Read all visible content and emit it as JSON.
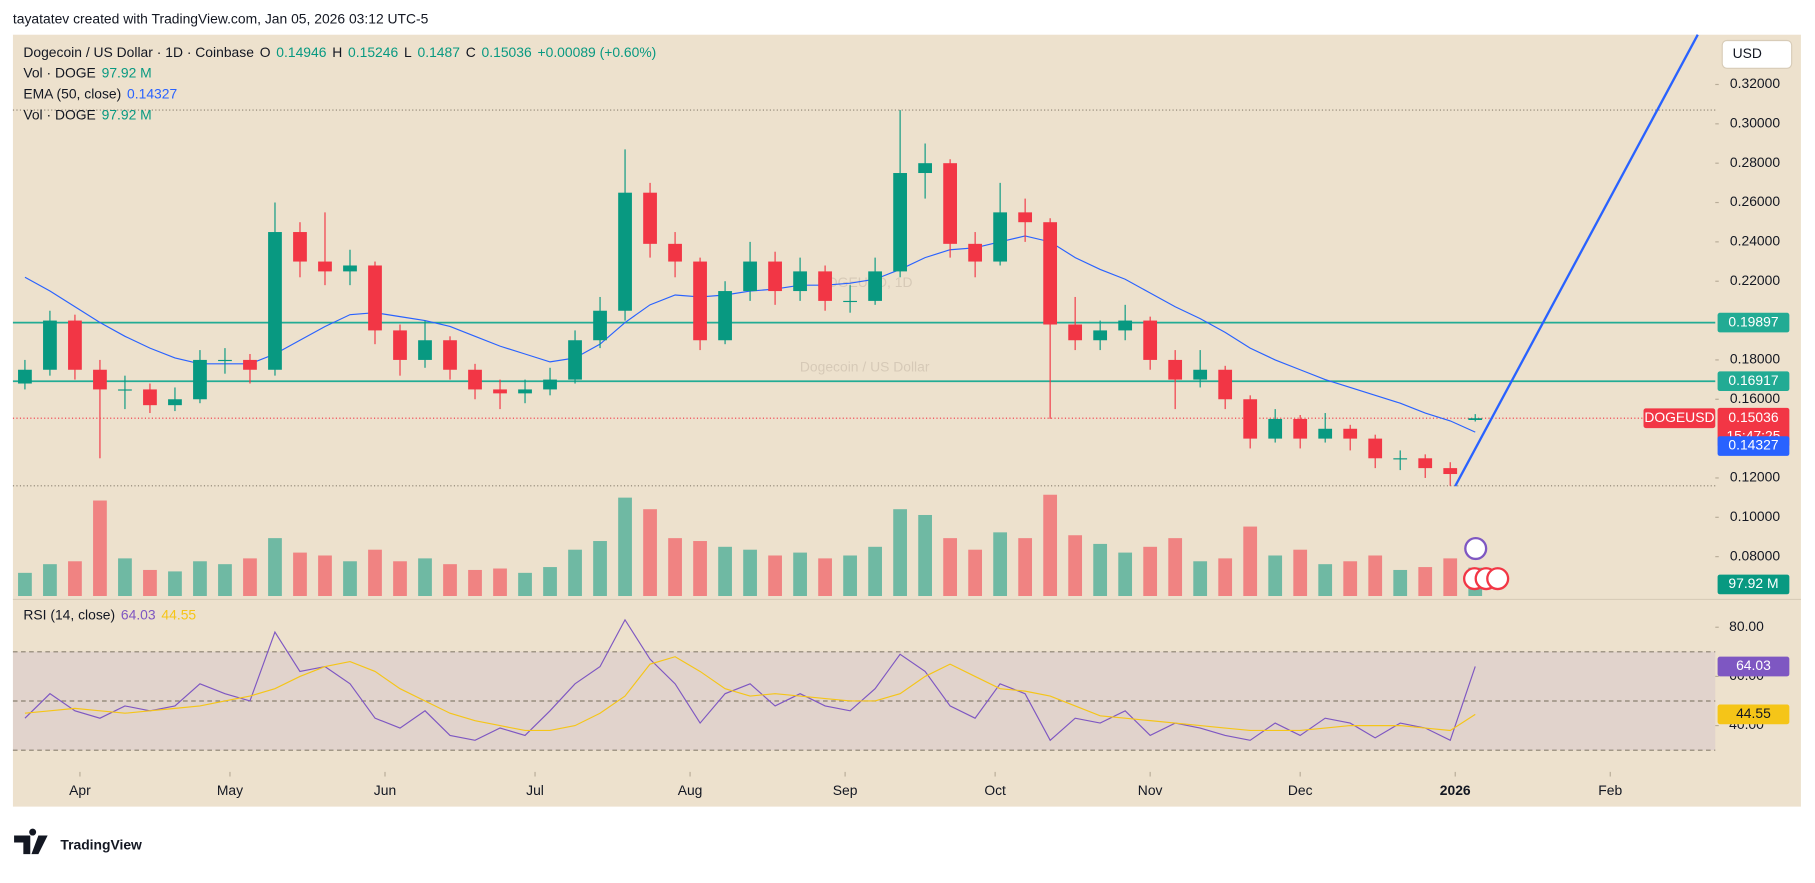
{
  "credit": "tayatatev created with TradingView.com, Jan 05, 2026 03:12 UTC-5",
  "header": {
    "symbol": "Dogecoin / US Dollar · 1D · Coinbase",
    "ohlc": [
      {
        "label": "O",
        "value": 0.14946
      },
      {
        "label": "H",
        "value": 0.15246
      },
      {
        "label": "L",
        "value": 0.1487
      },
      {
        "label": "C",
        "value": 0.15036
      }
    ],
    "change": "+0.00089 (+0.60%)",
    "indicators": [
      {
        "name": "Vol · DOGE",
        "value": "97.92 M"
      },
      {
        "name": "EMA (50, close)",
        "value": 0.14327
      },
      {
        "name": "Vol · DOGE",
        "value": "97.92 M"
      }
    ]
  },
  "watermark": {
    "ticker": "DOGEUSD, 1D",
    "name": "Dogecoin / US Dollar"
  },
  "currency": "USD",
  "footer": {
    "logo": "TradingView"
  },
  "chart_data": [
    {
      "type": "candlestick",
      "symbol": "DOGEUSD",
      "countdown": "15:47:25",
      "up_color": "#089981",
      "down_color": "#f23645",
      "xlim": [
        -0.48,
        67.6
      ],
      "xticks": [
        {
          "value": 2.2,
          "label": "Apr"
        },
        {
          "value": 8.2,
          "label": "May"
        },
        {
          "value": 14.4,
          "label": "Jun"
        },
        {
          "value": 20.4,
          "label": "Jul"
        },
        {
          "value": 26.6,
          "label": "Aug"
        },
        {
          "value": 32.8,
          "label": "Sep"
        },
        {
          "value": 38.8,
          "label": "Oct"
        },
        {
          "value": 45,
          "label": "Nov"
        },
        {
          "value": 51,
          "label": "Dec"
        },
        {
          "value": 57.2,
          "label": "2026"
        },
        {
          "value": 63.4,
          "label": "Feb"
        }
      ],
      "ylim": [
        0.06,
        0.3453
      ],
      "yticks": [
        {
          "value": 0.08,
          "label": "0.08000"
        },
        {
          "value": 0.1,
          "label": "0.10000"
        },
        {
          "value": 0.12,
          "label": "0.12000"
        },
        {
          "value": 0.16,
          "label": "0.16000"
        },
        {
          "value": 0.18,
          "label": "0.18000"
        },
        {
          "value": 0.22,
          "label": "0.22000"
        },
        {
          "value": 0.24,
          "label": "0.24000"
        },
        {
          "value": 0.26,
          "label": "0.26000"
        },
        {
          "value": 0.28,
          "label": "0.28000"
        },
        {
          "value": 0.3,
          "label": "0.30000"
        },
        {
          "value": 0.32,
          "label": "0.32000"
        }
      ],
      "open": [
        0.168,
        0.175,
        0.2,
        0.175,
        0.165,
        0.165,
        0.157,
        0.16,
        0.18,
        0.18,
        0.175,
        0.245,
        0.23,
        0.225,
        0.228,
        0.195,
        0.18,
        0.19,
        0.175,
        0.165,
        0.163,
        0.165,
        0.17,
        0.19,
        0.205,
        0.265,
        0.239,
        0.23,
        0.19,
        0.215,
        0.23,
        0.215,
        0.225,
        0.21,
        0.21,
        0.225,
        0.275,
        0.28,
        0.239,
        0.23,
        0.255,
        0.25,
        0.198,
        0.19,
        0.195,
        0.2,
        0.18,
        0.17,
        0.175,
        0.16,
        0.14,
        0.15,
        0.14,
        0.145,
        0.14,
        0.13,
        0.13,
        0.125,
        0.14946
      ],
      "high": [
        0.18,
        0.205,
        0.203,
        0.18,
        0.172,
        0.168,
        0.166,
        0.185,
        0.186,
        0.183,
        0.26,
        0.25,
        0.255,
        0.236,
        0.23,
        0.198,
        0.2,
        0.192,
        0.178,
        0.17,
        0.17,
        0.176,
        0.195,
        0.212,
        0.287,
        0.27,
        0.245,
        0.232,
        0.22,
        0.24,
        0.235,
        0.232,
        0.228,
        0.218,
        0.232,
        0.307,
        0.29,
        0.282,
        0.245,
        0.27,
        0.262,
        0.252,
        0.212,
        0.2,
        0.208,
        0.202,
        0.185,
        0.185,
        0.177,
        0.162,
        0.155,
        0.152,
        0.153,
        0.147,
        0.142,
        0.134,
        0.132,
        0.128,
        0.15246
      ],
      "low": [
        0.165,
        0.172,
        0.17,
        0.13,
        0.155,
        0.153,
        0.154,
        0.158,
        0.173,
        0.168,
        0.172,
        0.222,
        0.218,
        0.218,
        0.188,
        0.172,
        0.176,
        0.17,
        0.16,
        0.155,
        0.158,
        0.162,
        0.168,
        0.186,
        0.2,
        0.232,
        0.222,
        0.185,
        0.188,
        0.21,
        0.208,
        0.21,
        0.205,
        0.204,
        0.208,
        0.222,
        0.262,
        0.232,
        0.222,
        0.228,
        0.24,
        0.15,
        0.185,
        0.185,
        0.19,
        0.175,
        0.155,
        0.166,
        0.155,
        0.135,
        0.138,
        0.135,
        0.138,
        0.134,
        0.125,
        0.124,
        0.12,
        0.116,
        0.1487
      ],
      "close": [
        0.175,
        0.2,
        0.175,
        0.165,
        0.165,
        0.157,
        0.16,
        0.18,
        0.18,
        0.175,
        0.245,
        0.23,
        0.225,
        0.228,
        0.195,
        0.18,
        0.19,
        0.175,
        0.165,
        0.163,
        0.165,
        0.17,
        0.19,
        0.205,
        0.265,
        0.239,
        0.23,
        0.19,
        0.215,
        0.23,
        0.215,
        0.225,
        0.21,
        0.21,
        0.225,
        0.275,
        0.28,
        0.239,
        0.23,
        0.255,
        0.25,
        0.198,
        0.19,
        0.195,
        0.2,
        0.18,
        0.17,
        0.175,
        0.16,
        0.14,
        0.15,
        0.14,
        0.145,
        0.14,
        0.13,
        0.13,
        0.125,
        0.122,
        0.15036
      ],
      "ema": {
        "name": "EMA (50, close)",
        "color": "#2962ff",
        "values": [
          0.222,
          0.215,
          0.207,
          0.199,
          0.192,
          0.186,
          0.181,
          0.178,
          0.178,
          0.178,
          0.183,
          0.19,
          0.197,
          0.203,
          0.204,
          0.202,
          0.2,
          0.197,
          0.192,
          0.187,
          0.183,
          0.179,
          0.181,
          0.188,
          0.199,
          0.208,
          0.213,
          0.212,
          0.213,
          0.215,
          0.216,
          0.218,
          0.218,
          0.219,
          0.221,
          0.226,
          0.232,
          0.236,
          0.237,
          0.24,
          0.243,
          0.24,
          0.232,
          0.226,
          0.221,
          0.214,
          0.207,
          0.201,
          0.194,
          0.186,
          0.18,
          0.175,
          0.17,
          0.166,
          0.162,
          0.158,
          0.153,
          0.149,
          0.14327
        ]
      },
      "volume": {
        "name": "Vol · DOGE",
        "ylim": [
          0,
          360
        ],
        "value_label": "97.92 M",
        "values": [
          80,
          110,
          120,
          330,
          130,
          90,
          85,
          120,
          110,
          130,
          200,
          150,
          140,
          120,
          160,
          120,
          130,
          110,
          90,
          95,
          80,
          100,
          160,
          190,
          340,
          300,
          200,
          190,
          170,
          160,
          140,
          150,
          130,
          140,
          170,
          300,
          280,
          200,
          160,
          220,
          200,
          350,
          210,
          180,
          150,
          170,
          200,
          120,
          130,
          240,
          140,
          160,
          110,
          120,
          140,
          90,
          100,
          130,
          97.92
        ]
      },
      "levels": {
        "color": "#22ab94",
        "values": [
          0.19897,
          0.16917
        ]
      },
      "trendline": {
        "color": "#2962ff",
        "x": [
          57.2,
          66.9
        ],
        "values": [
          0.1159,
          0.3453
        ]
      }
    },
    {
      "type": "line",
      "title": "RSI (14, close)",
      "ylim": [
        22.1,
        90.35
      ],
      "yticks": [
        {
          "value": 40,
          "label": "40.00"
        },
        {
          "value": 60,
          "label": "60.00"
        },
        {
          "value": 80,
          "label": "80.00"
        }
      ],
      "bands": [
        30,
        50,
        70
      ],
      "series": [
        {
          "color": "#7e57c2",
          "values": [
            43,
            53,
            46,
            43,
            48,
            46,
            48,
            57,
            53,
            50,
            78,
            62,
            64,
            57,
            43,
            39,
            46,
            36,
            34,
            39,
            36,
            46,
            57,
            64,
            83,
            67,
            57,
            41,
            53,
            57,
            48,
            53,
            48,
            46,
            55,
            69,
            62,
            48,
            43,
            57,
            53,
            34,
            43,
            41,
            46,
            36,
            41,
            39,
            36,
            34,
            41,
            36,
            43,
            41,
            35,
            41,
            39,
            34,
            64.03
          ]
        },
        {
          "color": "#f5c518",
          "values": [
            45,
            46,
            47,
            46,
            45,
            46,
            47,
            48,
            50,
            52,
            55,
            60,
            64,
            66,
            62,
            55,
            50,
            45,
            42,
            40,
            38,
            38,
            40,
            45,
            52,
            65,
            68,
            62,
            55,
            52,
            53,
            52,
            51,
            50,
            50,
            53,
            60,
            65,
            60,
            55,
            54,
            52,
            48,
            44,
            43,
            42,
            41,
            40,
            39,
            38,
            38,
            38,
            39,
            40,
            40,
            40,
            39,
            38,
            44.55
          ]
        }
      ]
    }
  ]
}
